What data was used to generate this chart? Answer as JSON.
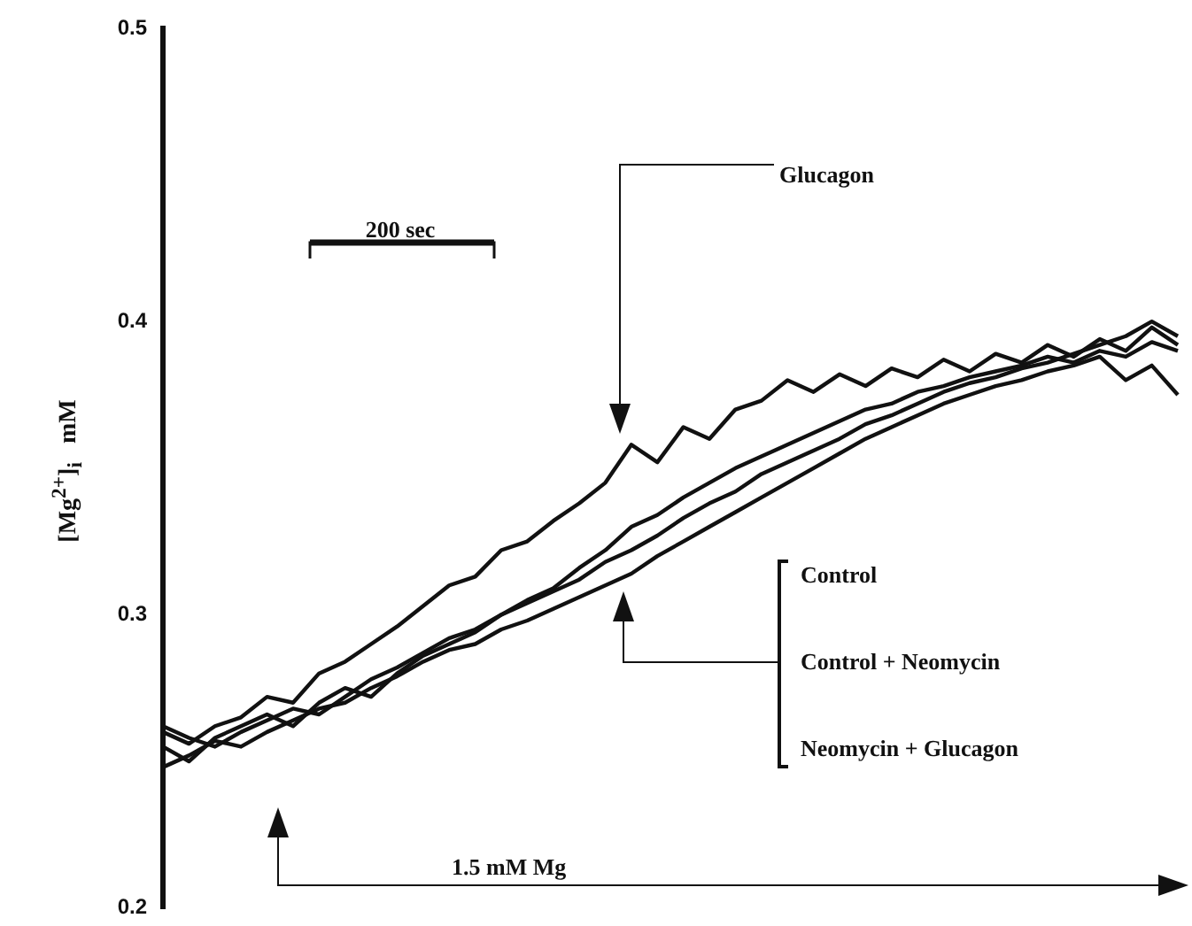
{
  "chart_data": {
    "type": "line",
    "ylabel": "[Mg$^{2+}$]$_{i}$   mM",
    "marker": "none",
    "line_style": "solid",
    "annotations": [
      "200 sec",
      "Glucagon",
      "1.5 mM Mg",
      "Control",
      "Control + Neomycin",
      "Neomycin + Glucagon"
    ],
    "categories": [
      null,
      null,
      null,
      null,
      null,
      null,
      null,
      null,
      null,
      null,
      null,
      null,
      null,
      null,
      null,
      null,
      null,
      null,
      null,
      null,
      null,
      null,
      null,
      null,
      null,
      null,
      null,
      null,
      null,
      null,
      null,
      null,
      null,
      null,
      null,
      null,
      null,
      null,
      null,
      null
    ],
    "ylim": [
      0.2,
      0.5
    ],
    "yticks": [
      0.2,
      0.3,
      0.4,
      0.5
    ],
    "series": [
      {
        "color": "#111111",
        "values": [
          0.26,
          0.256,
          0.262,
          0.265,
          0.272,
          0.27,
          0.28,
          0.284,
          0.29,
          0.296,
          0.303,
          0.31,
          0.313,
          0.322,
          0.325,
          0.332,
          0.338,
          0.345,
          0.358,
          0.352,
          0.364,
          0.36,
          0.37,
          0.373,
          0.38,
          0.376,
          0.382,
          0.378,
          0.384,
          0.381,
          0.387,
          0.383,
          0.389,
          0.386,
          0.392,
          0.388,
          0.394,
          0.39,
          0.398,
          0.392
        ]
      },
      {
        "color": "#111111",
        "values": [
          0.255,
          0.25,
          0.258,
          0.262,
          0.266,
          0.262,
          0.27,
          0.275,
          0.272,
          0.28,
          0.286,
          0.29,
          0.294,
          0.3,
          0.305,
          0.309,
          0.316,
          0.322,
          0.33,
          0.334,
          0.34,
          0.345,
          0.35,
          0.354,
          0.358,
          0.362,
          0.366,
          0.37,
          0.372,
          0.376,
          0.378,
          0.381,
          0.383,
          0.385,
          0.388,
          0.386,
          0.39,
          0.388,
          0.393,
          0.39
        ]
      },
      {
        "color": "#111111",
        "values": [
          0.262,
          0.258,
          0.255,
          0.26,
          0.264,
          0.268,
          0.266,
          0.272,
          0.278,
          0.282,
          0.287,
          0.292,
          0.295,
          0.3,
          0.304,
          0.308,
          0.312,
          0.318,
          0.322,
          0.327,
          0.333,
          0.338,
          0.342,
          0.348,
          0.352,
          0.356,
          0.36,
          0.365,
          0.368,
          0.372,
          0.376,
          0.379,
          0.381,
          0.384,
          0.386,
          0.389,
          0.392,
          0.395,
          0.4,
          0.395
        ]
      },
      {
        "color": "#111111",
        "values": [
          0.248,
          0.252,
          0.257,
          0.255,
          0.26,
          0.264,
          0.268,
          0.27,
          0.275,
          0.279,
          0.284,
          0.288,
          0.29,
          0.295,
          0.298,
          0.302,
          0.306,
          0.31,
          0.314,
          0.32,
          0.325,
          0.33,
          0.335,
          0.34,
          0.345,
          0.35,
          0.355,
          0.36,
          0.364,
          0.368,
          0.372,
          0.375,
          0.378,
          0.38,
          0.383,
          0.385,
          0.388,
          0.38,
          0.385,
          0.375
        ]
      }
    ]
  }
}
